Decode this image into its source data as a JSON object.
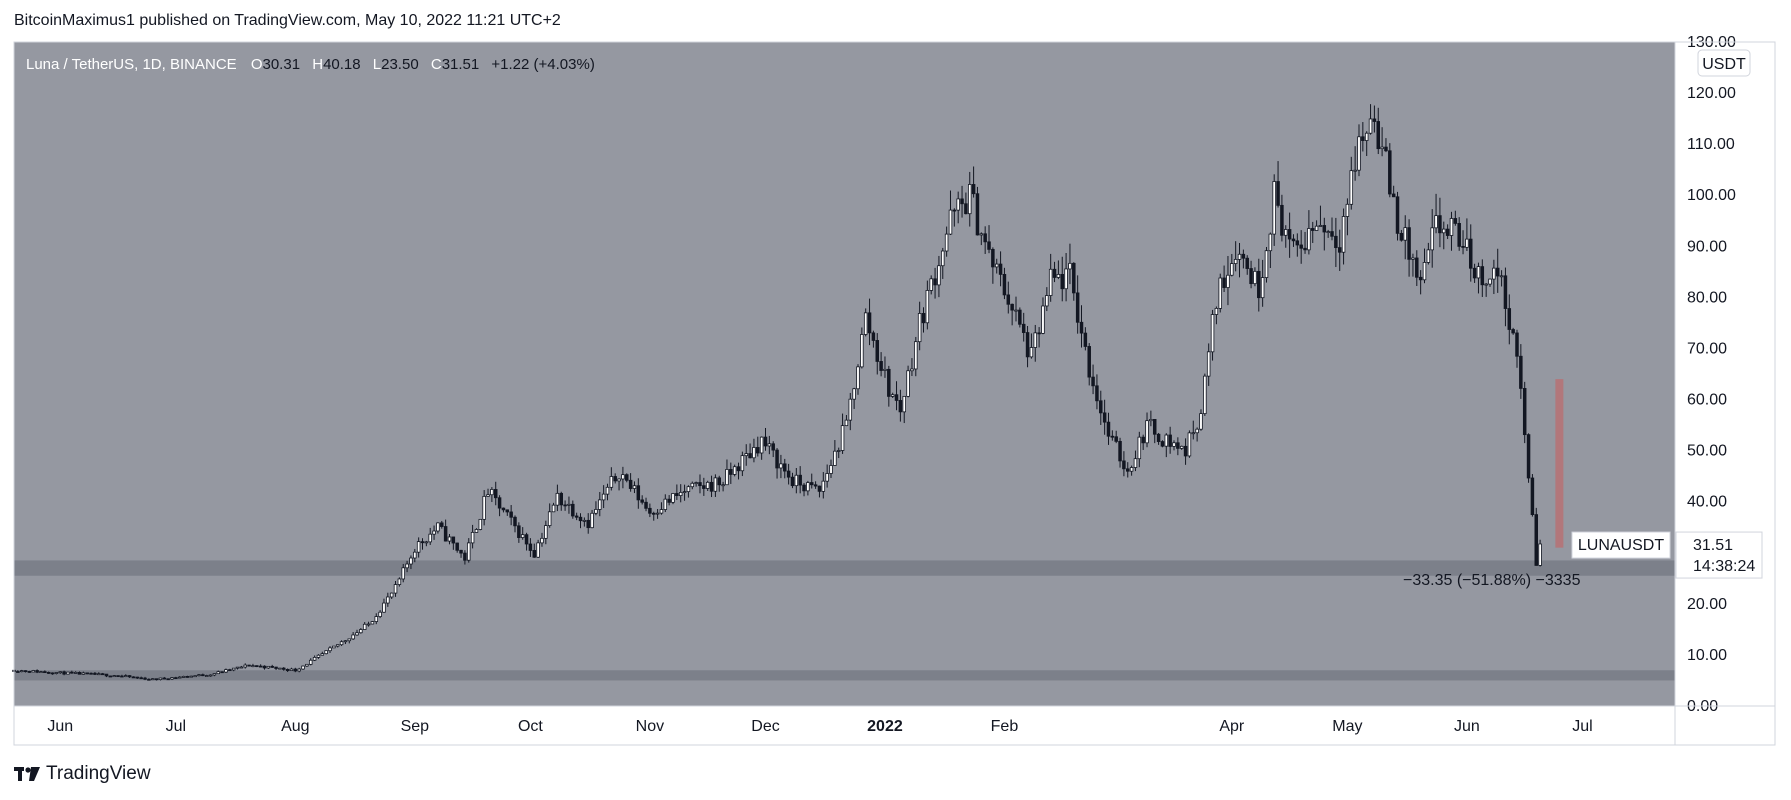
{
  "header": {
    "text": "BitcoinMaximus1 published on TradingView.com, May 10, 2022 11:21 UTC+2"
  },
  "footer": {
    "brand": "TradingView",
    "logo_icon": "tradingview-logo-icon"
  },
  "legend": {
    "symbol": "Luna / TetherUS, 1D, BINANCE",
    "o_label": "O",
    "o_value": "30.31",
    "h_label": "H",
    "h_value": "40.18",
    "l_label": "L",
    "l_value": "23.50",
    "c_label": "C",
    "c_value": "31.51",
    "change": "+1.22 (+4.03%)"
  },
  "colors": {
    "plot_bg": "#9598a1",
    "zone": "#787b86",
    "candle": "#131722",
    "measure_bar": "#b2777b"
  },
  "chart_data": {
    "type": "candlestick",
    "ylabel": "USDT",
    "ylim": [
      0,
      130
    ],
    "x_range": [
      "2021-05-20",
      "2022-07-25"
    ],
    "yticks": [
      0,
      10,
      20,
      30,
      40,
      50,
      60,
      70,
      80,
      90,
      100,
      110,
      120,
      130
    ],
    "ytick_labels": [
      "0.00",
      "10.00",
      "20.00",
      "30.00",
      "40.00",
      "50.00",
      "60.00",
      "70.00",
      "80.00",
      "90.00",
      "100.00",
      "110.00",
      "120.00",
      "130.00"
    ],
    "xticks": [
      {
        "date": "2021-06-01",
        "label": "Jun"
      },
      {
        "date": "2021-07-01",
        "label": "Jul"
      },
      {
        "date": "2021-08-01",
        "label": "Aug"
      },
      {
        "date": "2021-09-01",
        "label": "Sep"
      },
      {
        "date": "2021-10-01",
        "label": "Oct"
      },
      {
        "date": "2021-11-01",
        "label": "Nov"
      },
      {
        "date": "2021-12-01",
        "label": "Dec"
      },
      {
        "date": "2022-01-01",
        "label": "2022"
      },
      {
        "date": "2022-02-01",
        "label": "Feb"
      },
      {
        "date": "2022-04-01",
        "label": "Apr"
      },
      {
        "date": "2022-05-01",
        "label": "May"
      },
      {
        "date": "2022-06-01",
        "label": "Jun"
      },
      {
        "date": "2022-07-01",
        "label": "Jul"
      }
    ],
    "series": [
      {
        "points": [
          [
            "2021-05-20",
            7.0
          ],
          [
            "2021-06-01",
            6.5
          ],
          [
            "2021-06-15",
            6.0
          ],
          [
            "2021-06-25",
            5.2
          ],
          [
            "2021-07-10",
            6.2
          ],
          [
            "2021-07-20",
            8.0
          ],
          [
            "2021-08-01",
            7.0
          ],
          [
            "2021-08-10",
            11.0
          ],
          [
            "2021-08-20",
            16.0
          ],
          [
            "2021-08-27",
            23.0
          ],
          [
            "2021-09-01",
            31.0
          ],
          [
            "2021-09-07",
            35.0
          ],
          [
            "2021-09-14",
            29.0
          ],
          [
            "2021-09-20",
            42.0
          ],
          [
            "2021-09-26",
            36.0
          ],
          [
            "2021-10-02",
            30.0
          ],
          [
            "2021-10-08",
            41.0
          ],
          [
            "2021-10-16",
            36.0
          ],
          [
            "2021-10-24",
            46.0
          ],
          [
            "2021-11-01",
            38.0
          ],
          [
            "2021-11-10",
            42.0
          ],
          [
            "2021-11-20",
            44.0
          ],
          [
            "2021-11-30",
            52.0
          ],
          [
            "2021-12-08",
            44.0
          ],
          [
            "2021-12-15",
            42.0
          ],
          [
            "2021-12-22",
            55.0
          ],
          [
            "2021-12-27",
            76.0
          ],
          [
            "2022-01-02",
            62.0
          ],
          [
            "2022-01-05",
            58.0
          ],
          [
            "2022-01-10",
            75.0
          ],
          [
            "2022-01-18",
            95.0
          ],
          [
            "2022-01-23",
            100.0
          ],
          [
            "2022-01-28",
            88.0
          ],
          [
            "2022-02-02",
            80.0
          ],
          [
            "2022-02-08",
            68.0
          ],
          [
            "2022-02-13",
            83.0
          ],
          [
            "2022-02-18",
            84.0
          ],
          [
            "2022-02-23",
            66.0
          ],
          [
            "2022-02-28",
            53.0
          ],
          [
            "2022-03-05",
            46.0
          ],
          [
            "2022-03-10",
            55.0
          ],
          [
            "2022-03-15",
            52.0
          ],
          [
            "2022-03-20",
            50.0
          ],
          [
            "2022-03-24",
            58.0
          ],
          [
            "2022-03-28",
            80.0
          ],
          [
            "2022-04-02",
            90.0
          ],
          [
            "2022-04-08",
            82.0
          ],
          [
            "2022-04-12",
            100.0
          ],
          [
            "2022-04-17",
            88.0
          ],
          [
            "2022-04-23",
            95.0
          ],
          [
            "2022-04-29",
            92.0
          ],
          [
            "2022-05-04",
            110.0
          ],
          [
            "2022-05-08",
            116.0
          ],
          [
            "2022-05-14",
            95.0
          ],
          [
            "2022-05-20",
            82.0
          ],
          [
            "2022-05-24",
            94.0
          ],
          [
            "2022-05-30",
            92.0
          ],
          [
            "2022-06-04",
            84.0
          ],
          [
            "2022-06-09",
            85.0
          ],
          [
            "2022-06-12",
            76.0
          ],
          [
            "2022-06-15",
            62.0
          ],
          [
            "2022-06-17",
            45.0
          ],
          [
            "2022-06-19",
            28.0
          ],
          [
            "2022-06-20",
            31.51
          ]
        ]
      }
    ],
    "zones": [
      {
        "low": 25.5,
        "high": 28.5
      },
      {
        "low": 5.0,
        "high": 7.0
      }
    ],
    "measure": {
      "date": "2022-06-25",
      "from": 31.0,
      "to": 64.0,
      "label": "−33.35 (−51.88%) −3335"
    },
    "last_price": {
      "symbol": "LUNAUSDT",
      "price": "31.51",
      "countdown": "14:38:24",
      "value": 31.51
    }
  }
}
